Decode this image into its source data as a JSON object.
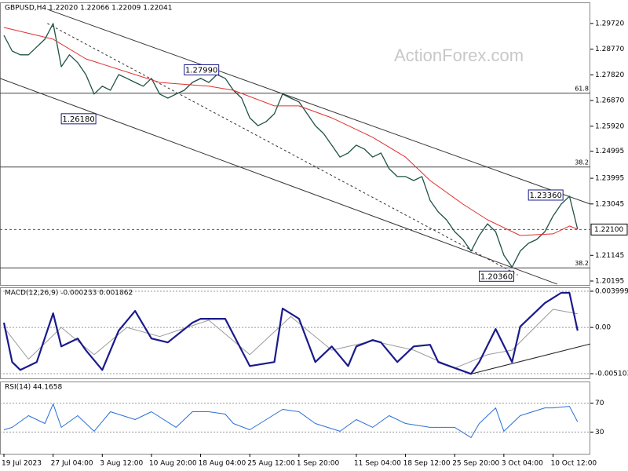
{
  "watermark": "ActionForex.com",
  "chart_data": [
    {
      "type": "line",
      "title": "GBPUSD,H4  1.22020 1.22066 1.22009 1.22041",
      "grid": false,
      "xlim": [
        -0.48,
        71.55
      ],
      "ylim": [
        1.2005,
        1.305
      ],
      "yticks": [
        {
          "value": 1.2972,
          "label": "1.29720"
        },
        {
          "value": 1.2877,
          "label": "1.28770"
        },
        {
          "value": 1.2782,
          "label": "1.27820"
        },
        {
          "value": 1.2687,
          "label": "1.26870"
        },
        {
          "value": 1.2592,
          "label": "1.25920"
        },
        {
          "value": 1.24995,
          "label": "1.24995"
        },
        {
          "value": 1.23995,
          "label": "1.23995"
        },
        {
          "value": 1.23045,
          "label": "1.23045"
        },
        {
          "value": 1.21145,
          "label": "1.21145"
        },
        {
          "value": 1.20195,
          "label": "1.20195"
        }
      ],
      "series": [
        {
          "color": "#1e5246",
          "width": 1.3,
          "values": [
            1.2928,
            1.287,
            1.2856,
            1.2856,
            1.2885,
            1.2914,
            1.2972,
            1.2812,
            1.2856,
            1.2827,
            1.2783,
            1.2711,
            1.274,
            1.2725,
            1.2783,
            1.2769,
            1.2754,
            1.274,
            1.2769,
            1.2711,
            1.2696,
            1.2711,
            1.2725,
            1.2754,
            1.2769,
            1.2754,
            1.2783,
            1.2769,
            1.2725,
            1.2696,
            1.2623,
            1.2594,
            1.2609,
            1.2638,
            1.2711,
            1.2696,
            1.2682,
            1.2638,
            1.2594,
            1.2565,
            1.2522,
            1.2478,
            1.2493,
            1.2522,
            1.2507,
            1.2478,
            1.2493,
            1.2435,
            1.2406,
            1.2406,
            1.2391,
            1.2406,
            1.2318,
            1.2275,
            1.2246,
            1.2202,
            1.2173,
            1.213,
            1.2188,
            1.2231,
            1.2202,
            1.2115,
            1.2071,
            1.213,
            1.2159,
            1.2173,
            1.2202,
            1.226,
            1.2304,
            1.2333,
            1.2211
          ]
        },
        {
          "color": "#e03030",
          "width": 1,
          "x": [
            0,
            6,
            10,
            19,
            25,
            28,
            33,
            36,
            40,
            45,
            49,
            52,
            56,
            59,
            63,
            67,
            69,
            70
          ],
          "values": [
            1.2957,
            1.2914,
            1.2841,
            1.2754,
            1.274,
            1.2725,
            1.2667,
            1.2667,
            1.2623,
            1.2551,
            1.2478,
            1.2391,
            1.2304,
            1.2246,
            1.2188,
            1.2194,
            1.2223,
            1.2211
          ]
        }
      ],
      "trend_lines": [
        {
          "color": "#333333",
          "dash": false,
          "x": [
            5.3,
            71.55
          ],
          "values": [
            1.3024,
            1.2304
          ]
        },
        {
          "color": "#333333",
          "dash": true,
          "x": [
            5.3,
            62.7
          ],
          "values": [
            1.2972,
            1.2042
          ]
        },
        {
          "color": "#333333",
          "dash": false,
          "x": [
            -0.48,
            67.5
          ],
          "values": [
            1.2769,
            1.2008
          ]
        }
      ],
      "levels": [
        {
          "value": 1.2714,
          "label": "61.8"
        },
        {
          "value": 1.2441,
          "label": "38.2"
        },
        {
          "value": 1.2068,
          "label": "38.2"
        }
      ],
      "annotations": [
        {
          "x": 22,
          "value": 1.2799,
          "label": "1.27990"
        },
        {
          "x": 7,
          "value": 1.2618,
          "label": "1.26180"
        },
        {
          "x": 64,
          "value": 1.2336,
          "label": "1.23360"
        },
        {
          "x": 58,
          "value": 1.2036,
          "label": "1.20360"
        }
      ],
      "current_price": {
        "value": 1.221,
        "label": "1.22100"
      }
    },
    {
      "type": "line",
      "title": "MACD(12,26,9) -0.000233 0.001862",
      "grid": true,
      "xlim": [
        -0.48,
        71.55
      ],
      "ylim": [
        -0.00562,
        0.00443
      ],
      "yticks": [
        {
          "value": 0.003999,
          "label": "0.003999"
        },
        {
          "value": 0,
          "label": "0.00"
        },
        {
          "value": -0.005103,
          "label": "-0.005103"
        }
      ],
      "series": [
        {
          "color": "#9a9a9a",
          "width": 1,
          "x": [
            0,
            3,
            7,
            11,
            15,
            19,
            25,
            30,
            35,
            40,
            45,
            50,
            55,
            59,
            62,
            67,
            70
          ],
          "values": [
            0,
            -0.0035,
            0,
            -0.003,
            0,
            -0.001,
            0.0008,
            -0.003,
            0.0012,
            -0.0025,
            -0.0015,
            -0.0025,
            -0.0045,
            -0.003,
            -0.0025,
            0.002,
            0.0015
          ]
        },
        {
          "color": "#1a1a8c",
          "width": 2.2,
          "x": [
            0,
            1,
            2,
            4,
            6,
            7,
            9,
            10,
            12,
            14,
            16,
            18,
            20,
            23,
            24,
            27,
            28,
            30,
            33,
            34,
            36,
            38,
            40,
            42,
            43,
            45,
            46,
            48,
            50,
            52,
            53,
            57,
            58,
            60,
            62,
            63,
            66,
            68,
            69,
            70
          ],
          "values": [
            0.00052,
            -0.00382,
            -0.00469,
            -0.00382,
            0.00156,
            -0.00209,
            -0.00122,
            -0.00252,
            -0.00469,
            -0.00035,
            0.00182,
            -0.00122,
            -0.00165,
            0.00052,
            0.00096,
            0.00096,
            -0.00078,
            -0.00426,
            -0.00382,
            0.00209,
            0.00096,
            -0.00382,
            -0.00209,
            -0.00426,
            -0.00209,
            -0.00139,
            -0.00165,
            -0.00382,
            -0.00209,
            -0.00191,
            -0.00382,
            -0.00513,
            -0.00382,
            -0.00017,
            -0.00382,
            9e-05,
            0.00269,
            0.00382,
            0.00382,
            -0.00035
          ]
        }
      ],
      "trend_lines": [
        {
          "color": "#222222",
          "dash": false,
          "x": [
            57,
            71.55
          ],
          "values": [
            -0.00513,
            -0.00182
          ]
        }
      ]
    },
    {
      "type": "line",
      "title": "RSI(14) 44.1658",
      "grid": true,
      "xlim": [
        -0.48,
        71.55
      ],
      "ylim": [
        0,
        100
      ],
      "yticks": [
        70,
        30
      ],
      "xticks": [
        {
          "value": 0,
          "label": "19 Jul 2023"
        },
        {
          "value": 6,
          "label": "27 Jul 04:00"
        },
        {
          "value": 12,
          "label": "3 Aug 12:00"
        },
        {
          "value": 18,
          "label": "10 Aug 20:00"
        },
        {
          "value": 24,
          "label": "18 Aug 04:00"
        },
        {
          "value": 30,
          "label": "25 Aug 12:00"
        },
        {
          "value": 36,
          "label": "1 Sep 20:00"
        },
        {
          "value": 43,
          "label": "11 Sep 04:00"
        },
        {
          "value": 49,
          "label": "18 Sep 12:00"
        },
        {
          "value": 55,
          "label": "25 Sep 20:00"
        },
        {
          "value": 61,
          "label": "3 Oct 04:00"
        },
        {
          "value": 67,
          "label": "10 Oct 12:00"
        }
      ],
      "series": [
        {
          "color": "#2a6fd6",
          "width": 1,
          "x": [
            0,
            1,
            3,
            5,
            6,
            7,
            9,
            11,
            13,
            16,
            18,
            21,
            23,
            25,
            27,
            28,
            30,
            32,
            34,
            36,
            38,
            41,
            43,
            45,
            47,
            49,
            52,
            55,
            57,
            58,
            60,
            61,
            63,
            66,
            67,
            69,
            70
          ],
          "values": [
            33.2,
            36.5,
            52.7,
            41.9,
            68.9,
            36.5,
            52.7,
            31.1,
            58.1,
            47.3,
            58.1,
            36.5,
            58.1,
            58.1,
            54.9,
            41.9,
            33.2,
            47.3,
            61.4,
            58.1,
            41.9,
            31.1,
            47.3,
            36.5,
            52.7,
            41.9,
            36.5,
            36.5,
            22.4,
            41.9,
            63.5,
            31.1,
            52.7,
            63.5,
            63.5,
            65.7,
            44.1658
          ]
        }
      ]
    }
  ]
}
